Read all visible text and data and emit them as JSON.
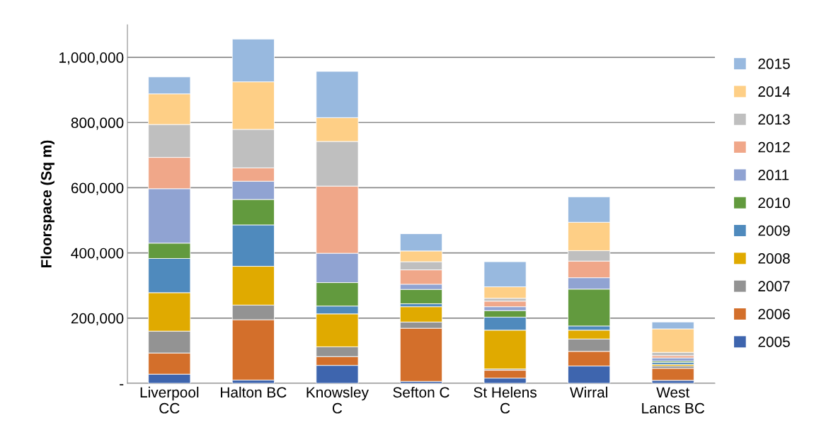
{
  "chart_data": {
    "type": "bar",
    "stacked": true,
    "ylabel": "Floorspace (Sq m)",
    "categories": [
      "Liverpool\nCC",
      "Halton BC",
      "Knowsley\nC",
      "Sefton C",
      "St Helens\nC",
      "Wirral",
      "West\nLancs BC"
    ],
    "series": [
      {
        "name": "2005",
        "color": "#3e65ae",
        "values": [
          28000,
          10000,
          55000,
          6000,
          16000,
          53000,
          9000
        ]
      },
      {
        "name": "2006",
        "color": "#d36f2b",
        "values": [
          65000,
          185000,
          27000,
          163000,
          24000,
          45000,
          37000
        ]
      },
      {
        "name": "2007",
        "color": "#939393",
        "values": [
          67000,
          45000,
          30000,
          19000,
          4000,
          38000,
          7000
        ]
      },
      {
        "name": "2008",
        "color": "#e0aa00",
        "values": [
          118000,
          119000,
          101000,
          47000,
          119000,
          27000,
          5000
        ]
      },
      {
        "name": "2009",
        "color": "#4f8abd",
        "values": [
          105000,
          127000,
          24000,
          9000,
          40000,
          13000,
          6000
        ]
      },
      {
        "name": "2010",
        "color": "#629a3e",
        "values": [
          47000,
          78000,
          72000,
          44000,
          20000,
          113000,
          4000
        ]
      },
      {
        "name": "2011",
        "color": "#90a3d2",
        "values": [
          167000,
          56000,
          90000,
          16000,
          12000,
          35000,
          10000
        ]
      },
      {
        "name": "2012",
        "color": "#f0a789",
        "values": [
          96000,
          41000,
          206000,
          44000,
          17000,
          51000,
          7000
        ]
      },
      {
        "name": "2013",
        "color": "#bfbfbf",
        "values": [
          101000,
          118000,
          137000,
          25000,
          9000,
          32000,
          10000
        ]
      },
      {
        "name": "2014",
        "color": "#fecf86",
        "values": [
          94000,
          146000,
          73000,
          33000,
          35000,
          87000,
          72000
        ]
      },
      {
        "name": "2015",
        "color": "#98b9df",
        "values": [
          52000,
          131000,
          142000,
          53000,
          77000,
          78000,
          21000
        ]
      }
    ],
    "ylim": [
      0,
      1100000
    ],
    "yticks": [
      {
        "value": 0,
        "label": "-"
      },
      {
        "value": 200000,
        "label": "200,000"
      },
      {
        "value": 400000,
        "label": "400,000"
      },
      {
        "value": 600000,
        "label": "600,000"
      },
      {
        "value": 800000,
        "label": "800,000"
      },
      {
        "value": 1000000,
        "label": "1,000,000"
      }
    ],
    "grid": "y",
    "legend": "right"
  }
}
